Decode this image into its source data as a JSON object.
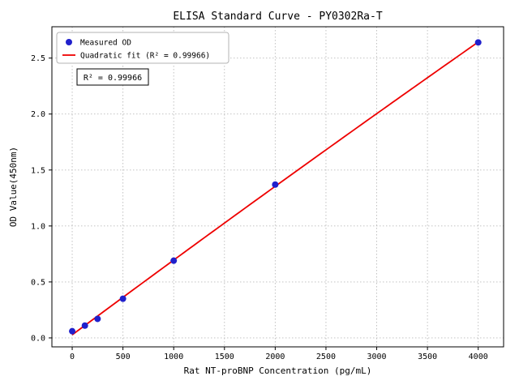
{
  "figure": {
    "background": "#ffffff"
  },
  "chart_data": {
    "type": "scatter",
    "title": "ELISA Standard Curve - PY0302Ra-T",
    "xlabel": "Rat NT-proBNP Concentration (pg/mL)",
    "ylabel": "OD Value(450nm)",
    "xlim": [
      -200,
      4250
    ],
    "ylim": [
      -0.08,
      2.78
    ],
    "xticks": [
      0,
      500,
      1000,
      1500,
      2000,
      2500,
      3000,
      3500,
      4000
    ],
    "xtick_labels": [
      "0",
      "500",
      "1000",
      "1500",
      "2000",
      "2500",
      "3000",
      "3500",
      "4000"
    ],
    "yticks": [
      0,
      0.5,
      1,
      1.5,
      2,
      2.5
    ],
    "ytick_labels": [
      "0.0",
      "0.5",
      "1.0",
      "1.5",
      "2.0",
      "2.5"
    ],
    "grid": true,
    "grid_color": "#bbbbbb",
    "series": [
      {
        "name": "Measured OD",
        "type": "scatter",
        "color": "#2020cc",
        "x": [
          0,
          125,
          250,
          500,
          1000,
          2000,
          4000
        ],
        "y": [
          0.06,
          0.11,
          0.17,
          0.35,
          0.69,
          1.37,
          2.64
        ]
      },
      {
        "name": "Quadratic fit (R² = 0.99966)",
        "type": "line",
        "fit": "quadratic",
        "color": "#ee0000"
      }
    ],
    "legend": {
      "position": "upper left"
    },
    "annotation": {
      "text": "R² = 0.99966"
    },
    "r_squared": 0.99966
  }
}
